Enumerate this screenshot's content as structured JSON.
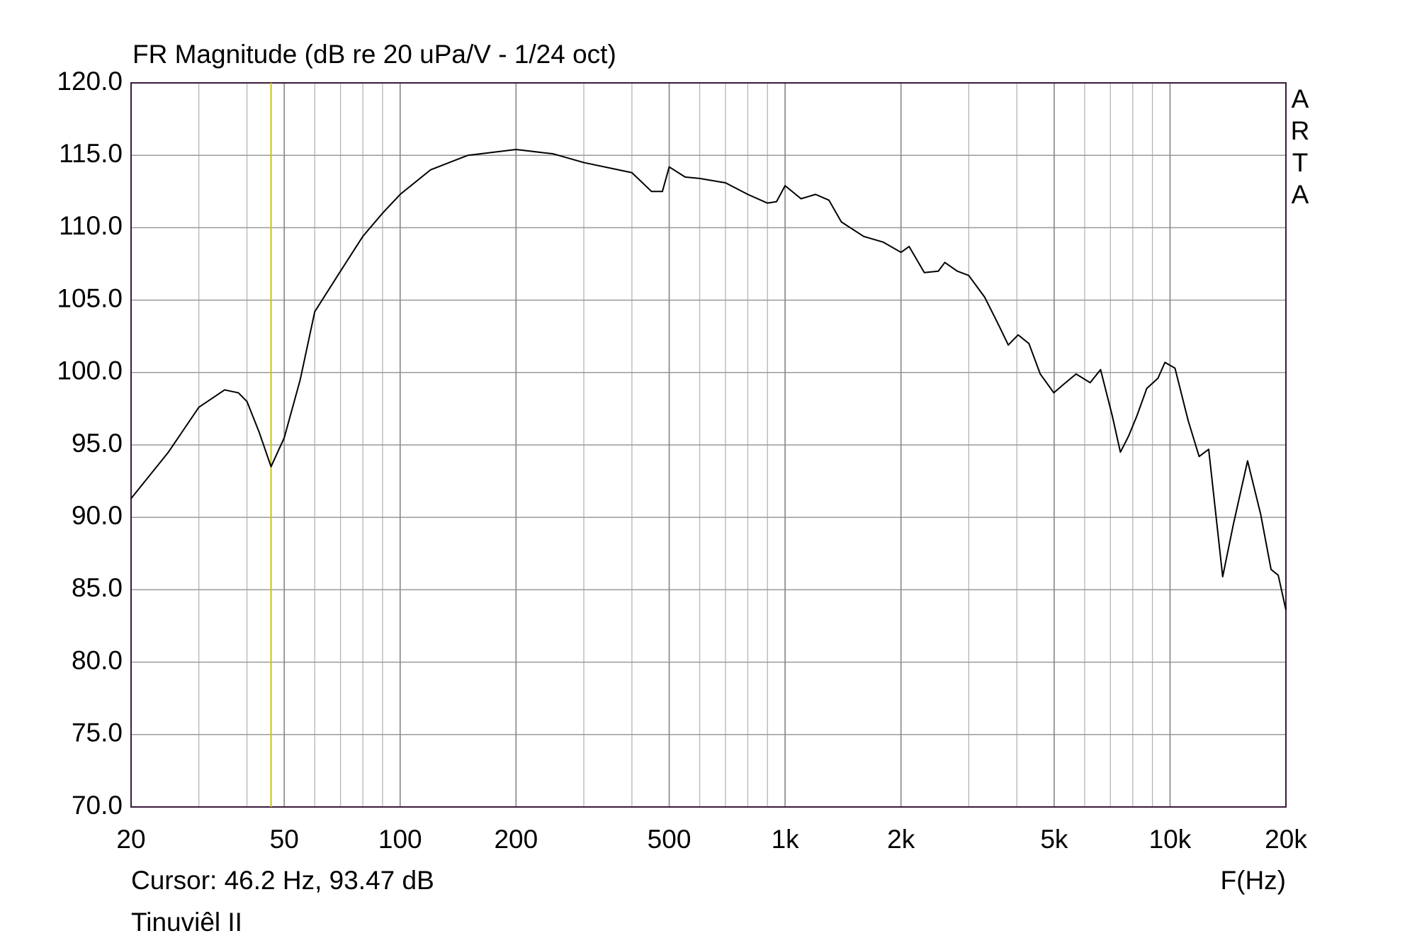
{
  "chart_data": {
    "type": "line",
    "title": "FR Magnitude (dB re 20 uPa/V - 1/24 oct)",
    "side_label": "ARTA",
    "x_label": "F(Hz)",
    "cursor": {
      "label": "Cursor: 46.2 Hz, 93.47 dB",
      "x": 46.2,
      "color": "#c8c800"
    },
    "footer": "Tinuviêl II",
    "x_log": true,
    "grid": true,
    "xlim": [
      20,
      20000
    ],
    "ylim": [
      70,
      120
    ],
    "xticks": [
      20,
      50,
      100,
      200,
      500,
      {
        "value": 1000,
        "label": "1k"
      },
      {
        "value": 2000,
        "label": "2k"
      },
      {
        "value": 5000,
        "label": "5k"
      },
      {
        "value": 10000,
        "label": "10k"
      },
      {
        "value": 20000,
        "label": "20k"
      }
    ],
    "x_minor_grid": [
      30,
      40,
      60,
      70,
      80,
      90,
      300,
      400,
      600,
      700,
      800,
      900,
      3000,
      4000,
      6000,
      7000,
      8000,
      9000
    ],
    "yticks": [
      {
        "value": 70,
        "label": "70.0"
      },
      {
        "value": 75,
        "label": "75.0"
      },
      {
        "value": 80,
        "label": "80.0"
      },
      {
        "value": 85,
        "label": "85.0"
      },
      {
        "value": 90,
        "label": "90.0"
      },
      {
        "value": 95,
        "label": "95.0"
      },
      {
        "value": 100,
        "label": "100.0"
      },
      {
        "value": 105,
        "label": "105.0"
      },
      {
        "value": 110,
        "label": "110.0"
      },
      {
        "value": 115,
        "label": "115.0"
      },
      {
        "value": 120,
        "label": "120.0"
      }
    ],
    "series": [
      {
        "color": "#000000",
        "x": [
          20,
          25,
          30,
          35,
          38,
          40,
          43,
          46.2,
          50,
          55,
          60,
          70,
          80,
          90,
          100,
          120,
          150,
          200,
          250,
          300,
          400,
          450,
          480,
          500,
          550,
          600,
          700,
          800,
          900,
          950,
          1000,
          1100,
          1200,
          1300,
          1400,
          1600,
          1800,
          2000,
          2100,
          2300,
          2500,
          2600,
          2800,
          3000,
          3300,
          3600,
          3800,
          4030,
          4300,
          4600,
          4990,
          5300,
          5700,
          6200,
          6600,
          7080,
          7430,
          7800,
          8200,
          8700,
          9300,
          9700,
          10300,
          11140,
          11900,
          12600,
          13700,
          14600,
          15900,
          17200,
          18300,
          19100,
          20000
        ],
        "values": [
          91.3,
          94.5,
          97.6,
          98.8,
          98.6,
          98.0,
          95.9,
          93.5,
          95.5,
          99.5,
          104.2,
          107.0,
          109.4,
          111.0,
          112.3,
          114.0,
          115.0,
          115.4,
          115.1,
          114.5,
          113.8,
          112.5,
          112.5,
          114.2,
          113.5,
          113.4,
          113.1,
          112.3,
          111.7,
          111.8,
          112.9,
          112.0,
          112.3,
          111.9,
          110.4,
          109.4,
          109.0,
          108.3,
          108.7,
          106.9,
          107.0,
          107.6,
          107.0,
          106.7,
          105.2,
          103.2,
          101.9,
          102.6,
          102.0,
          99.9,
          98.6,
          99.2,
          99.9,
          99.3,
          100.2,
          97.0,
          94.5,
          95.6,
          97.0,
          98.9,
          99.6,
          100.7,
          100.3,
          96.7,
          94.2,
          94.7,
          85.9,
          89.5,
          93.9,
          90.2,
          86.4,
          86.0,
          83.6
        ]
      }
    ]
  }
}
